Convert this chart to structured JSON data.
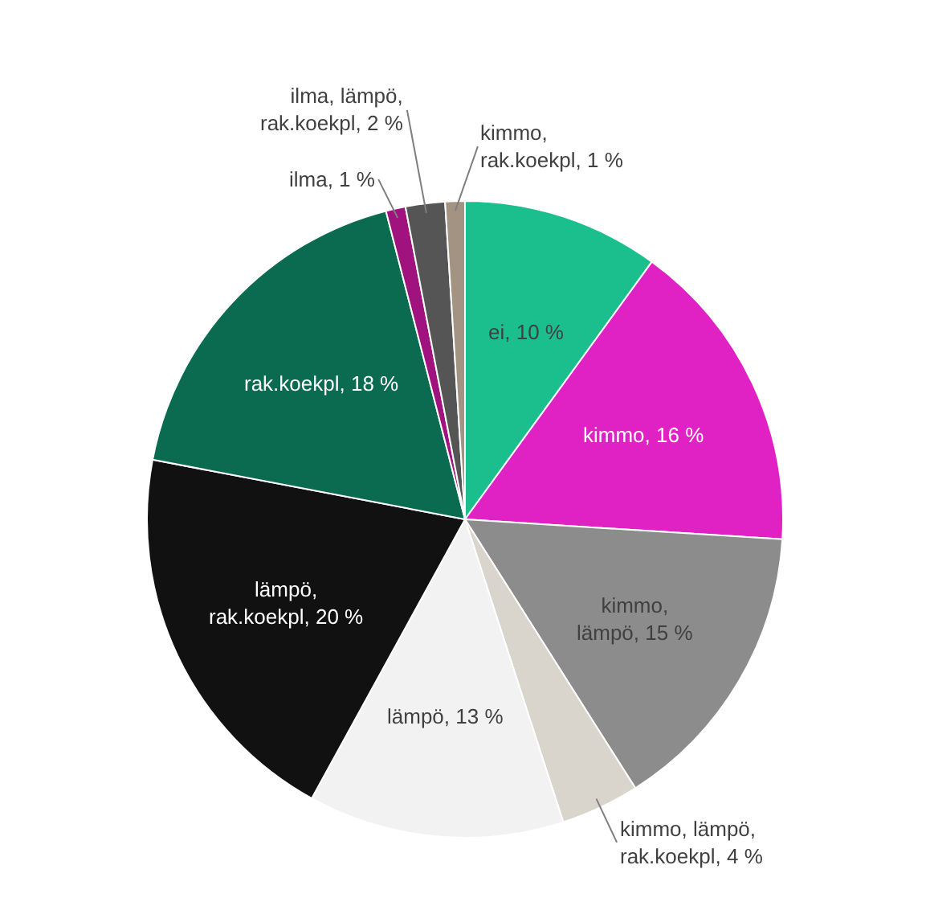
{
  "chart_data": {
    "type": "pie",
    "categories": [
      "ei",
      "kimmo",
      "kimmo, lämpö",
      "kimmo, lämpö, rak.koekpl",
      "lämpö",
      "lämpö, rak.koekpl",
      "rak.koekpl",
      "ilma",
      "ilma, lämpö, rak.koekpl",
      "kimmo, rak.koekpl"
    ],
    "values": [
      10,
      16,
      15,
      4,
      13,
      20,
      18,
      1,
      2,
      1
    ],
    "colors": [
      "#1bbf8e",
      "#e021c4",
      "#8c8c8c",
      "#d9d5cd",
      "#f2f2f2",
      "#111111",
      "#0b6b50",
      "#a0127e",
      "#555555",
      "#a39382"
    ],
    "value_labels": [
      "10 %",
      "16 %",
      "15 %",
      "4 %",
      "13 %",
      "20 %",
      "18 %",
      "1 %",
      "2 %",
      "1 %"
    ],
    "legend": false
  }
}
